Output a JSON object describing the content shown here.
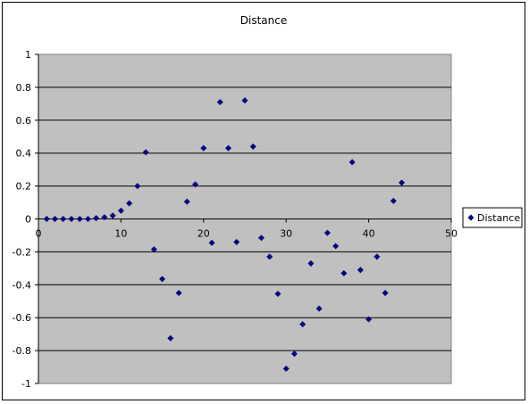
{
  "chart_data": {
    "type": "scatter",
    "title": "Distance",
    "xlabel": "",
    "ylabel": "",
    "xlim": [
      0,
      50
    ],
    "ylim": [
      -1,
      1
    ],
    "x_ticks": [
      0,
      10,
      20,
      30,
      40,
      50
    ],
    "y_ticks": [
      1,
      0.8,
      0.6,
      0.4,
      0.2,
      0,
      -0.2,
      -0.4,
      -0.6,
      -0.8,
      -1
    ],
    "grid": true,
    "plot_background": "#c0c0c0",
    "marker_color": "#000080",
    "legend": {
      "position": "right",
      "entries": [
        "Distance"
      ]
    },
    "series": [
      {
        "name": "Distance",
        "x": [
          1,
          2,
          3,
          4,
          5,
          6,
          7,
          8,
          9,
          10,
          11,
          12,
          13,
          14,
          15,
          16,
          17,
          18,
          19,
          20,
          21,
          22,
          23,
          24,
          25,
          26,
          27,
          28,
          29,
          30,
          31,
          32,
          33,
          34,
          35,
          36,
          37,
          38,
          39,
          40,
          41,
          42,
          43,
          44
        ],
        "y": [
          0,
          0,
          0,
          0,
          0,
          0,
          0.005,
          0.01,
          0.02,
          0.05,
          0.095,
          0.2,
          0.405,
          -0.185,
          -0.365,
          -0.725,
          -0.45,
          0.105,
          0.21,
          0.43,
          -0.145,
          0.71,
          0.43,
          -0.14,
          0.72,
          0.44,
          -0.115,
          -0.23,
          -0.455,
          -0.91,
          -0.82,
          -0.64,
          -0.27,
          -0.545,
          -0.085,
          -0.165,
          -0.33,
          0.345,
          -0.31,
          -0.61,
          -0.23,
          -0.45,
          0.11,
          0.22
        ]
      }
    ]
  }
}
